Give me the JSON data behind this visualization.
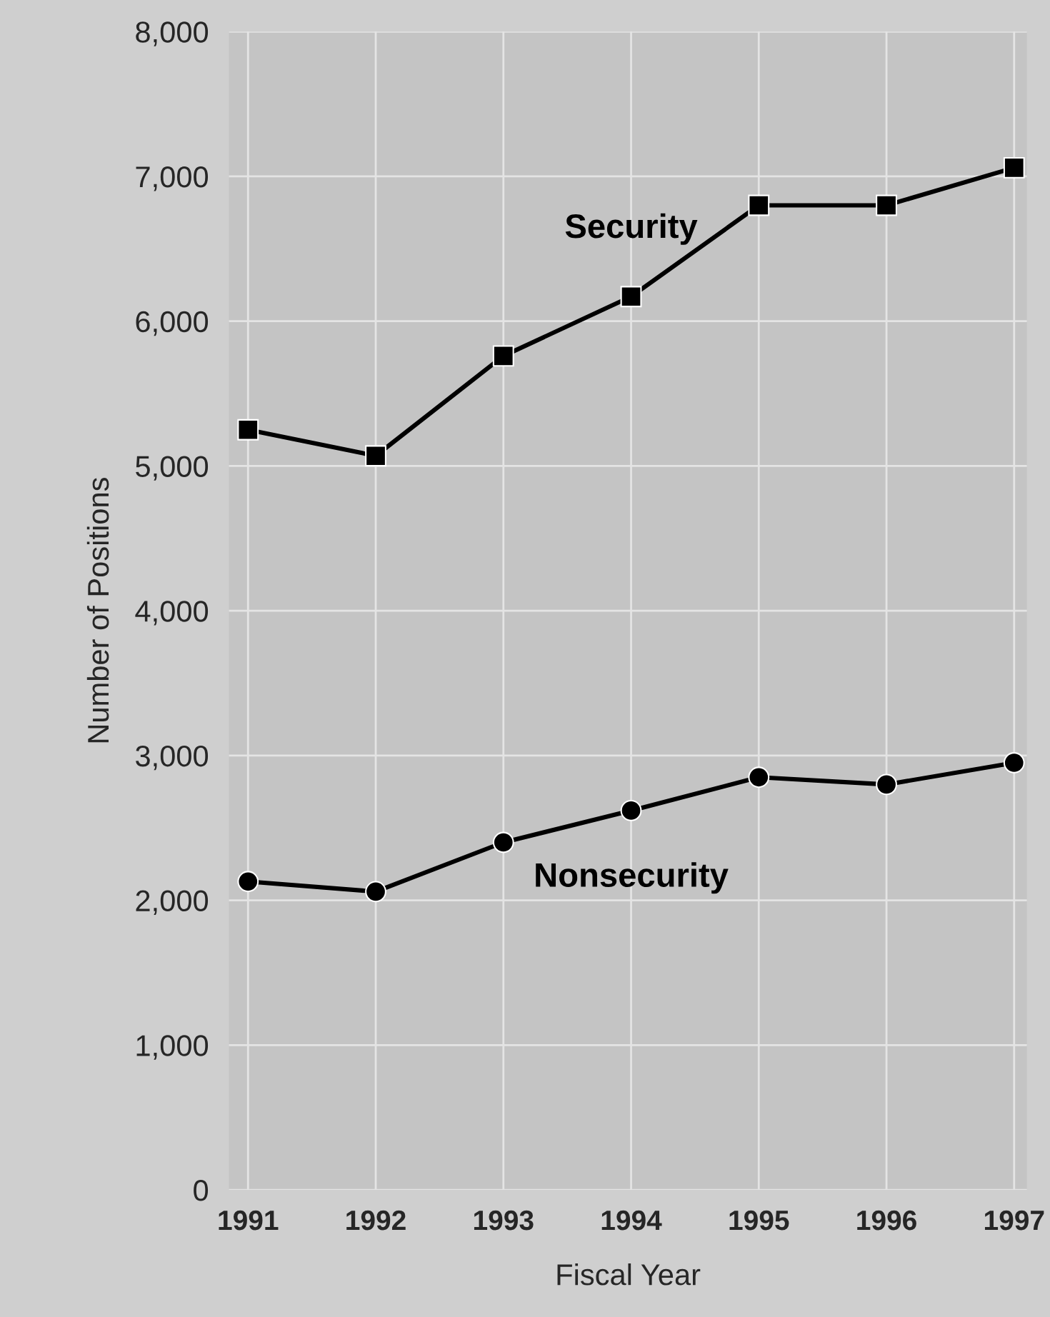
{
  "chart_data": {
    "type": "line",
    "xlabel": "Fiscal Year",
    "ylabel": "Number of Positions",
    "x": [
      1991,
      1992,
      1993,
      1994,
      1995,
      1996,
      1997
    ],
    "series": [
      {
        "name": "Security",
        "color": "#000000",
        "marker": "square",
        "values": [
          5250,
          5070,
          5760,
          6170,
          6800,
          6800,
          7060
        ]
      },
      {
        "name": "Nonsecurity",
        "color": "#000000",
        "marker": "circle",
        "values": [
          2130,
          2060,
          2400,
          2620,
          2850,
          2800,
          2950
        ]
      }
    ],
    "xlim": [
      1990.85,
      1997.1
    ],
    "xticks": [
      1991,
      1992,
      1993,
      1994,
      1995,
      1996,
      1997
    ],
    "ylim": [
      0,
      8000
    ],
    "yticks": [
      {
        "value": 0,
        "label": "0"
      },
      {
        "value": 1000,
        "label": "1,000"
      },
      {
        "value": 2000,
        "label": "2,000"
      },
      {
        "value": 3000,
        "label": "3,000"
      },
      {
        "value": 4000,
        "label": "4,000"
      },
      {
        "value": 5000,
        "label": "5,000"
      },
      {
        "value": 6000,
        "label": "6,000"
      },
      {
        "value": 7000,
        "label": "7,000"
      },
      {
        "value": 8000,
        "label": "8,000"
      }
    ],
    "grid": true,
    "legend": false,
    "line_style": "solid"
  }
}
